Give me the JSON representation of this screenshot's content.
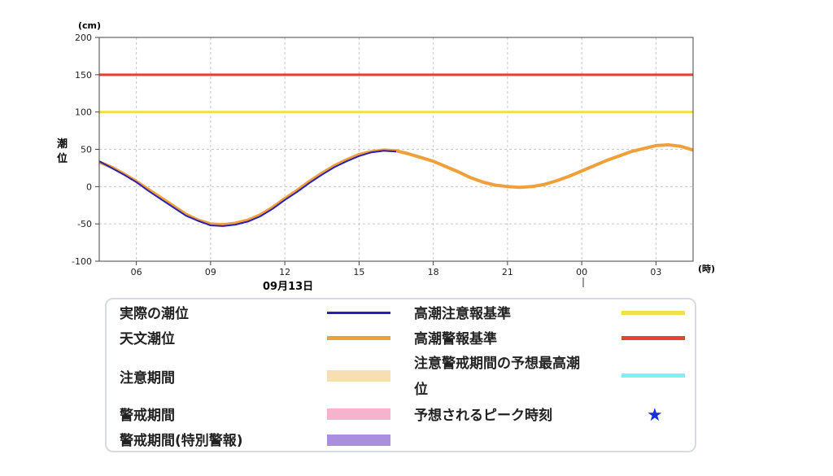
{
  "chart_data": {
    "type": "line",
    "y_unit": "(cm)",
    "x_unit": "(時)",
    "ylabel": "潮位",
    "ylim": [
      -100,
      200
    ],
    "y_ticks": [
      200,
      150,
      100,
      50,
      0,
      -50,
      -100
    ],
    "x_ticks": [
      "06",
      "09",
      "12",
      "15",
      "18",
      "21",
      "00",
      "03"
    ],
    "date_label": "09月13日",
    "grid": true,
    "reference_lines": [
      {
        "name": "高潮注意報基準",
        "value": 100,
        "color": "#f2e04a"
      },
      {
        "name": "高潮警報基準",
        "value": 150,
        "color": "#e2452b"
      }
    ],
    "series": [
      {
        "name": "天文潮位",
        "color": "#f0a03a",
        "hours": [
          4.5,
          5.0,
          5.5,
          6.0,
          6.5,
          7.0,
          7.5,
          8.0,
          8.5,
          9.0,
          9.5,
          10.0,
          10.5,
          11.0,
          11.5,
          12.0,
          12.5,
          13.0,
          13.5,
          14.0,
          14.5,
          15.0,
          15.5,
          16.0,
          16.5,
          17.0,
          17.5,
          18.0,
          18.5,
          19.0,
          19.5,
          20.0,
          20.5,
          21.0,
          21.5,
          22.0,
          22.5,
          23.0,
          23.5,
          24.0,
          24.5,
          25.0,
          25.5,
          26.0,
          26.5,
          27.0,
          27.5,
          28.0,
          28.5
        ],
        "values": [
          33,
          26,
          17,
          7,
          -4,
          -15,
          -26,
          -37,
          -45,
          -50,
          -51,
          -49,
          -45,
          -38,
          -28,
          -16,
          -5,
          7,
          18,
          28,
          36,
          43,
          47,
          49,
          48,
          44,
          39,
          34,
          27,
          20,
          12,
          6,
          2,
          0,
          -1,
          0,
          3,
          8,
          14,
          21,
          28,
          35,
          41,
          47,
          51,
          55,
          56,
          54,
          49
        ]
      },
      {
        "name": "実際の潮位",
        "color": "#2a1fb8",
        "hours": [
          4.5,
          5.0,
          5.5,
          6.0,
          6.5,
          7.0,
          7.5,
          8.0,
          8.5,
          9.0,
          9.5,
          10.0,
          10.5,
          11.0,
          11.5,
          12.0,
          12.5,
          13.0,
          13.5,
          14.0,
          14.5,
          15.0,
          15.5,
          16.0,
          16.5
        ],
        "values": [
          34,
          25,
          16,
          6,
          -6,
          -17,
          -28,
          -39,
          -46,
          -52,
          -53,
          -51,
          -47,
          -40,
          -30,
          -18,
          -7,
          5,
          16,
          26,
          34,
          41,
          46,
          48,
          47
        ]
      }
    ]
  },
  "legend": {
    "items": [
      {
        "label": "実際の潮位",
        "swatch": "line",
        "color": "#2a1fb8"
      },
      {
        "label": "天文潮位",
        "swatch": "line",
        "color": "#f0a03a"
      },
      {
        "label": "注意期間",
        "swatch": "bar",
        "color": "#f7dfb3"
      },
      {
        "label": "警戒期間",
        "swatch": "bar",
        "color": "#f6b3cc"
      },
      {
        "label": "警戒期間(特別警報)",
        "swatch": "bar",
        "color": "#a98fdc"
      },
      {
        "label": "高潮注意報基準",
        "swatch": "line",
        "color": "#f2e04a"
      },
      {
        "label": "高潮警報基準",
        "swatch": "line",
        "color": "#e2452b"
      },
      {
        "label_line1": "注意警戒期間の予想最高潮",
        "label_line2": "位",
        "swatch": "line",
        "color": "#7ef0f0"
      },
      {
        "label": "予想されるピーク時刻",
        "swatch": "star",
        "symbol": "★",
        "color": "#1a2ee0"
      }
    ]
  }
}
